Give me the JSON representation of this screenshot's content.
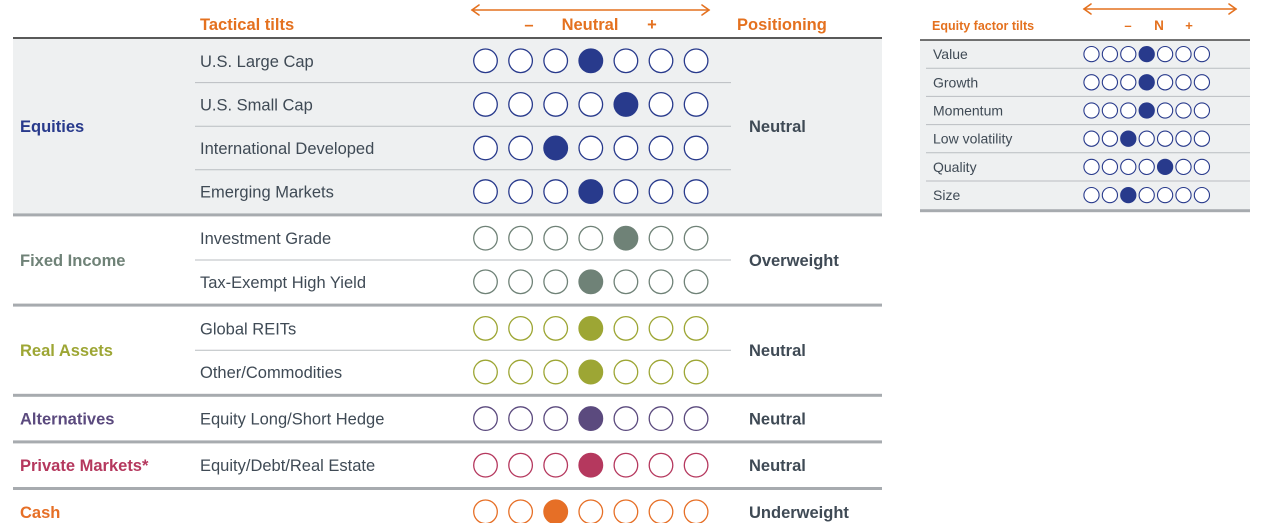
{
  "chart_data": [
    {
      "type": "table",
      "title": "Tactical tilts",
      "headers": {
        "tactical_tilts": "Tactical tilts",
        "scale_minus": "–",
        "scale_neutral": "Neutral",
        "scale_plus": "+",
        "positioning": "Positioning"
      },
      "scale": {
        "min": 1,
        "max": 7,
        "neutral": 4
      },
      "colors": {
        "header_orange": "#e4711f",
        "equities": "#283a8c",
        "fixed_income": "#6f8277",
        "real_assets": "#9da634",
        "alternatives": "#5b4a7e",
        "private_markets": "#b5385e",
        "cash": "#e66f26",
        "rule_gray": "#a7abaf",
        "band_gray": "#eef0f1"
      },
      "groups": [
        {
          "name": "Equities",
          "color": "#283a8c",
          "shaded": true,
          "positioning": "Neutral",
          "rows": [
            {
              "label": "U.S. Large Cap",
              "value": 4
            },
            {
              "label": "U.S. Small Cap",
              "value": 5
            },
            {
              "label": "International Developed",
              "value": 3
            },
            {
              "label": "Emerging Markets",
              "value": 4
            }
          ]
        },
        {
          "name": "Fixed Income",
          "color": "#6f8277",
          "shaded": false,
          "positioning": "Overweight",
          "rows": [
            {
              "label": "Investment Grade",
              "value": 5
            },
            {
              "label": "Tax-Exempt High Yield",
              "value": 4
            }
          ]
        },
        {
          "name": "Real Assets",
          "color": "#9da634",
          "shaded": false,
          "positioning": "Neutral",
          "rows": [
            {
              "label": "Global REITs",
              "value": 4
            },
            {
              "label": "Other/Commodities",
              "value": 4
            }
          ]
        },
        {
          "name": "Alternatives",
          "color": "#5b4a7e",
          "shaded": false,
          "positioning": "Neutral",
          "rows": [
            {
              "label": "Equity Long/Short Hedge",
              "value": 4
            }
          ]
        },
        {
          "name": "Private Markets*",
          "color": "#b5385e",
          "shaded": false,
          "positioning": "Neutral",
          "rows": [
            {
              "label": "Equity/Debt/Real Estate",
              "value": 4
            }
          ]
        },
        {
          "name": "Cash",
          "color": "#e66f26",
          "shaded": false,
          "positioning": "Underweight",
          "rows": [
            {
              "label": "",
              "value": 3
            }
          ]
        }
      ]
    },
    {
      "type": "table",
      "title": "Equity factor tilts",
      "headers": {
        "title": "Equity factor tilts",
        "scale_minus": "–",
        "scale_neutral": "N",
        "scale_plus": "+"
      },
      "scale": {
        "min": 1,
        "max": 7,
        "neutral": 4
      },
      "color": "#283a8c",
      "rows": [
        {
          "label": "Value",
          "value": 4
        },
        {
          "label": "Growth",
          "value": 4
        },
        {
          "label": "Momentum",
          "value": 4
        },
        {
          "label": "Low volatility",
          "value": 3
        },
        {
          "label": "Quality",
          "value": 5
        },
        {
          "label": "Size",
          "value": 3
        }
      ]
    }
  ]
}
